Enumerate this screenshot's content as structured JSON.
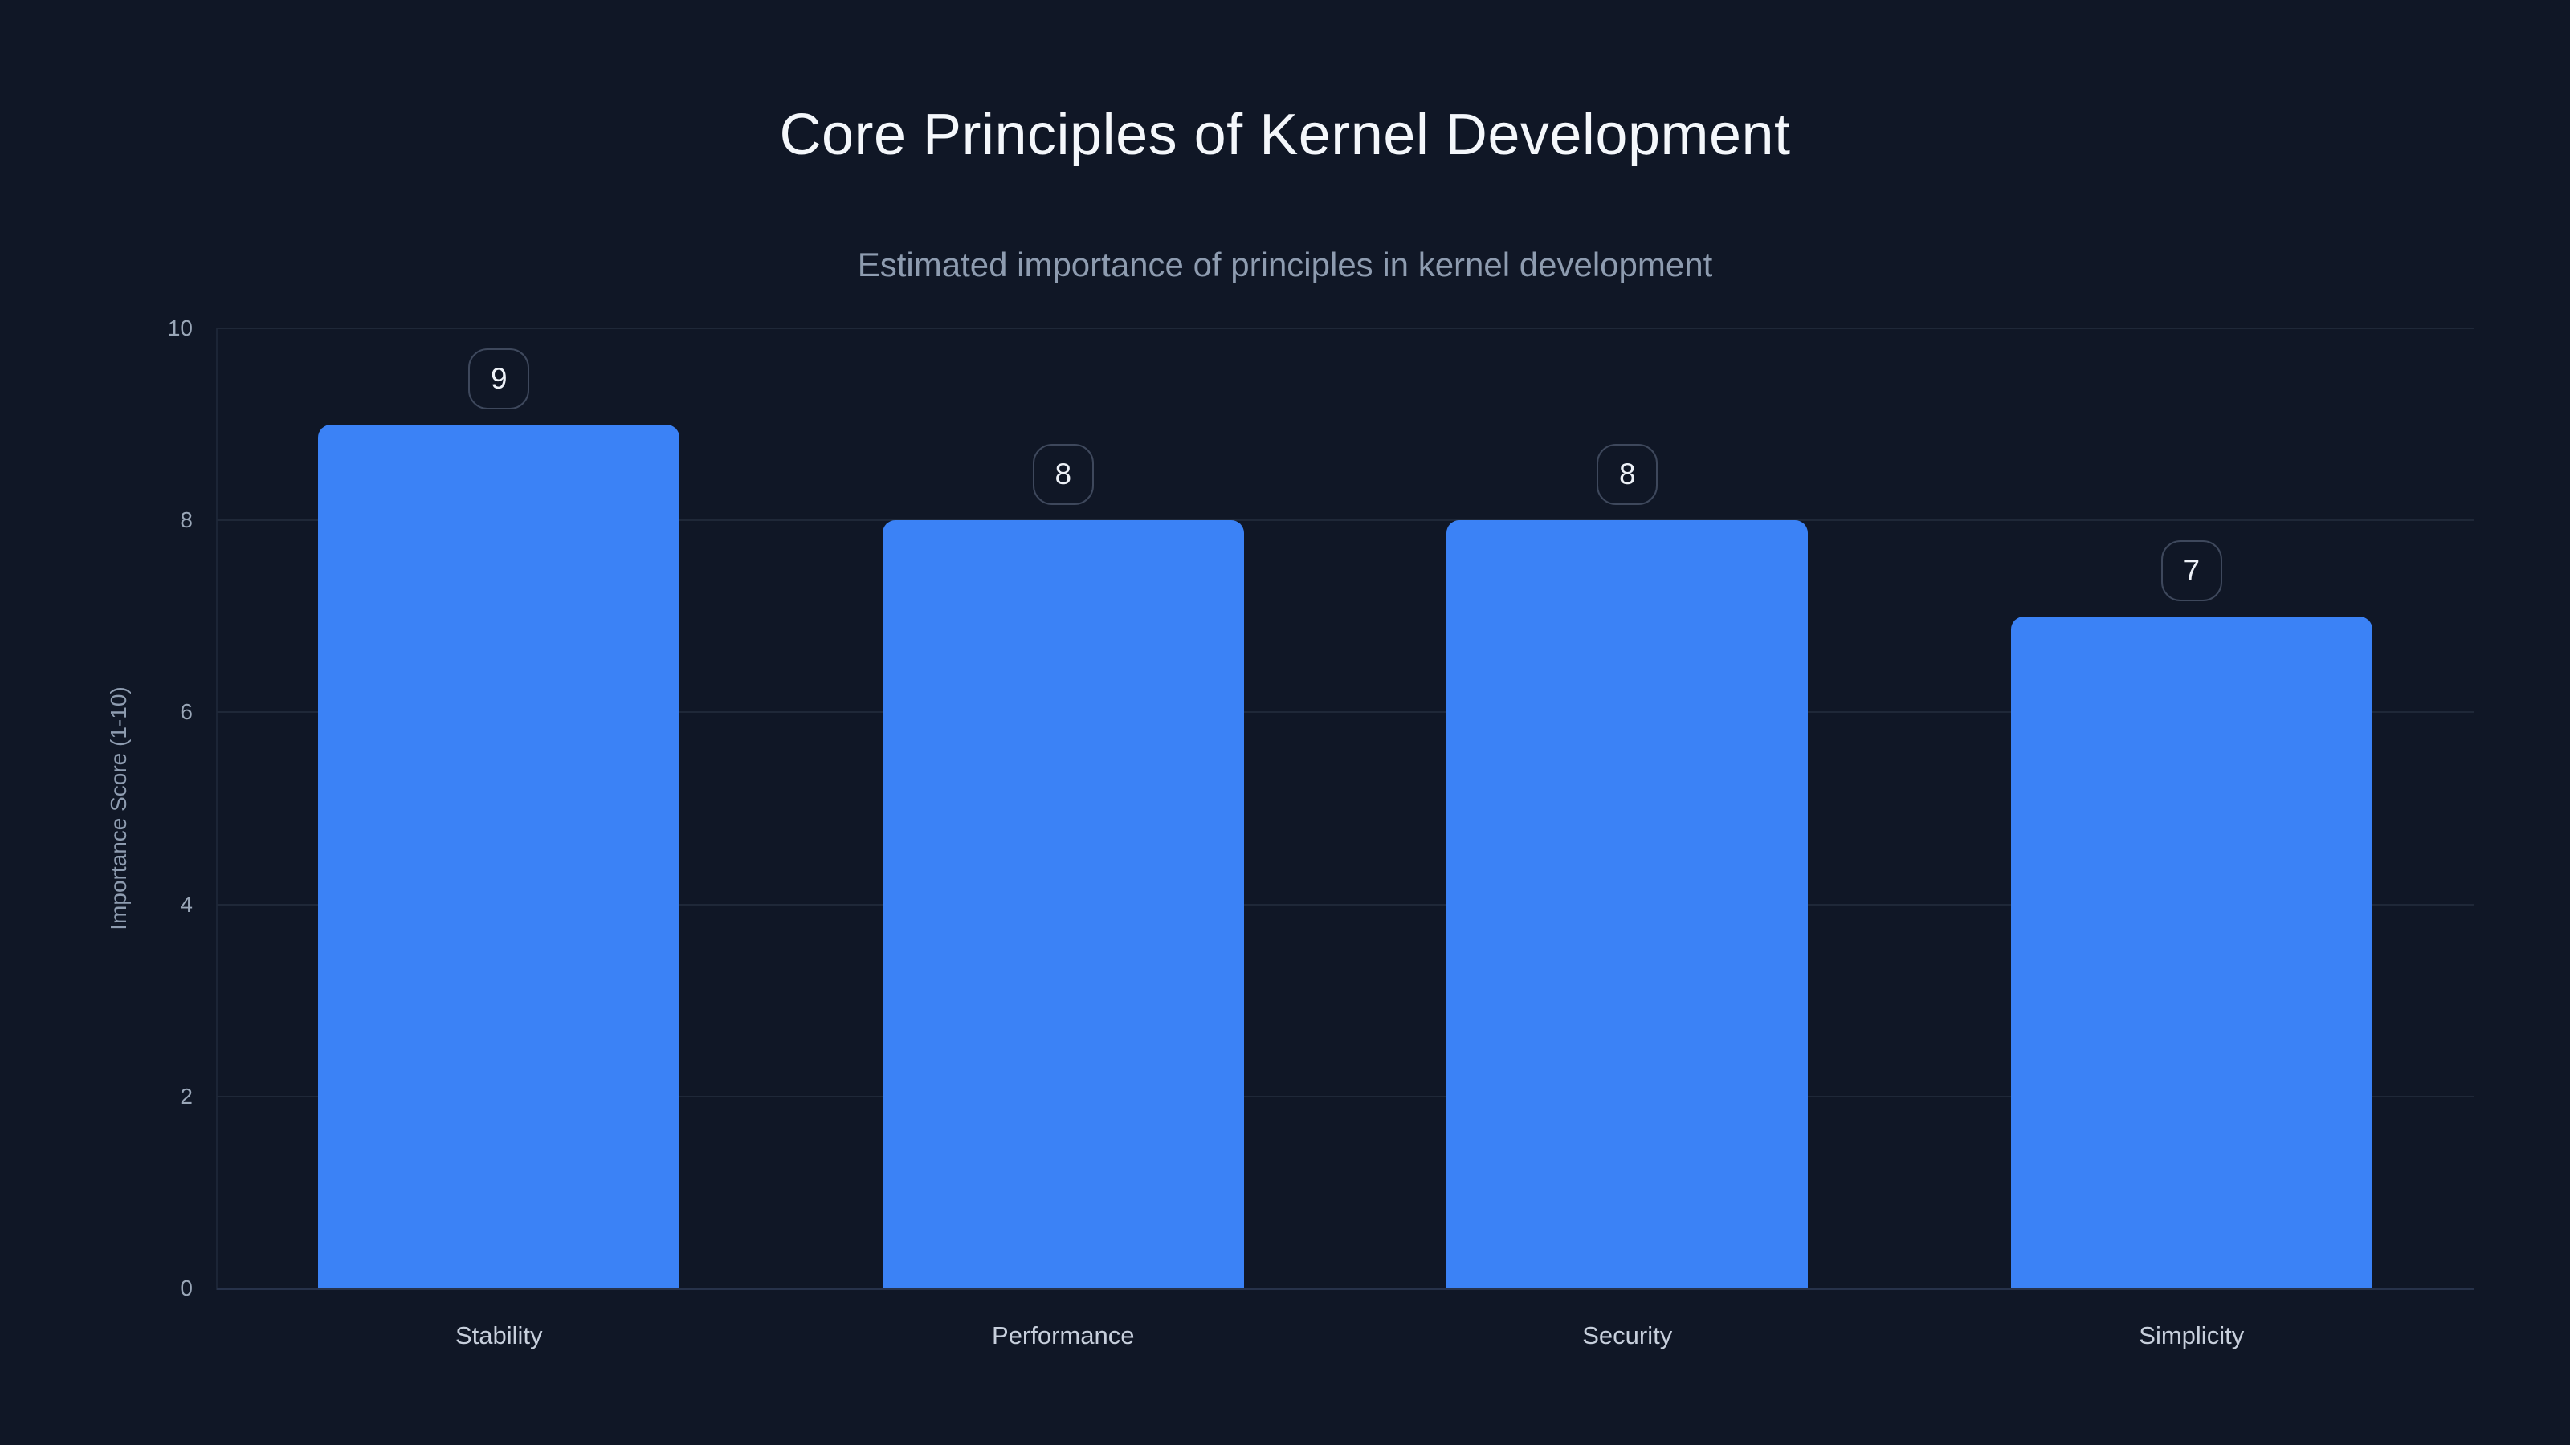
{
  "chart_data": {
    "type": "bar",
    "title": "Core Principles of Kernel Development",
    "subtitle": "Estimated importance of principles in kernel development",
    "categories": [
      "Stability",
      "Performance",
      "Security",
      "Simplicity"
    ],
    "values": [
      9,
      8,
      8,
      7
    ],
    "value_labels": [
      "9",
      "8",
      "8",
      "7"
    ],
    "xlabel": "",
    "ylabel": "Importance Score (1-10)",
    "ylim": [
      0,
      10
    ],
    "y_ticks": [
      0,
      2,
      4,
      6,
      8,
      10
    ],
    "grid": true,
    "legend": "none",
    "bar_color": "#3b82f6",
    "colors": {
      "background": "#101726",
      "title": "#f4f7fb",
      "subtitle": "#8e9cb0",
      "tick_label": "#9aa7b8",
      "category_label": "#c7cfdc",
      "axis_title": "#8e9cb0",
      "gridline": "#1f2838",
      "baseline": "#27324a",
      "axis_line": "#1c2536",
      "badge_border": "#3e485c",
      "badge_text": "#eef2f8"
    }
  }
}
